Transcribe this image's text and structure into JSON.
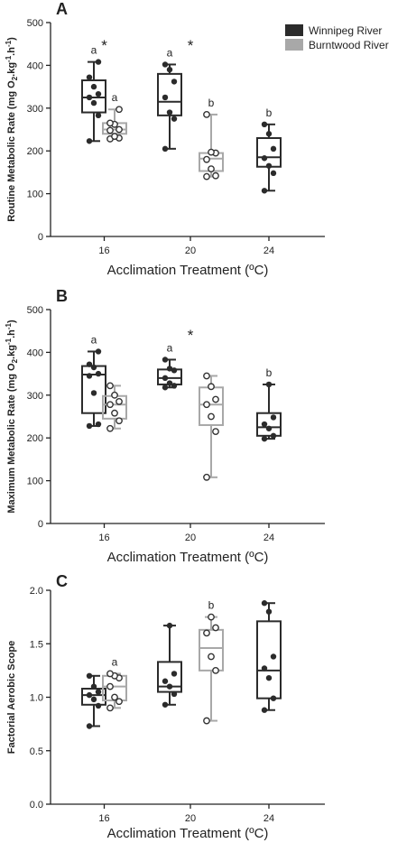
{
  "legend": {
    "placement": "top-right",
    "items": [
      {
        "name": "Winnipeg River",
        "color": "#2b2b2b"
      },
      {
        "name": "Burntwood River",
        "color": "#a8a8a8"
      }
    ]
  },
  "chart_data": [
    {
      "panel": "A",
      "type": "box",
      "title": "",
      "xlabel": "Acclimation Treatment (ºC)",
      "ylabel": "Routine Metabolic Rate (mg O2.kg-1.h-1)",
      "ylabel_parts": [
        "Routine Metabolic Rate (mg O",
        "2",
        ".kg",
        "-1",
        ".h",
        "-1",
        ")"
      ],
      "categories": [
        "16",
        "20",
        "24"
      ],
      "yticks": [
        "0",
        "100",
        "200",
        "300",
        "400",
        "500"
      ],
      "ylim": [
        0,
        500
      ],
      "series": [
        {
          "name": "Winnipeg River",
          "boxes": [
            {
              "category": "16",
              "min": 223,
              "q1": 290,
              "median": 325,
              "q3": 365,
              "max": 408,
              "points": [
                223,
                283,
                312,
                325,
                333,
                350,
                372,
                408
              ],
              "label": "a"
            },
            {
              "category": "20",
              "min": 205,
              "q1": 283,
              "median": 315,
              "q3": 380,
              "max": 402,
              "points": [
                205,
                275,
                290,
                325,
                362,
                390,
                402
              ],
              "label": "a"
            },
            {
              "category": "24",
              "min": 107,
              "q1": 163,
              "median": 185,
              "q3": 230,
              "max": 262,
              "points": [
                107,
                148,
                165,
                183,
                205,
                240,
                262
              ],
              "label": "b"
            }
          ]
        },
        {
          "name": "Burntwood River",
          "boxes": [
            {
              "category": "16",
              "min": 228,
              "q1": 240,
              "median": 250,
              "q3": 265,
              "max": 297,
              "points": [
                228,
                230,
                234,
                248,
                250,
                262,
                265,
                297
              ],
              "label": "a"
            },
            {
              "category": "20",
              "min": 140,
              "q1": 153,
              "median": 182,
              "q3": 195,
              "max": 285,
              "points": [
                140,
                142,
                158,
                180,
                195,
                197,
                285
              ],
              "label": "b"
            }
          ]
        }
      ],
      "significance": [
        "16",
        "20"
      ]
    },
    {
      "panel": "B",
      "type": "box",
      "title": "",
      "xlabel": "Acclimation Treatment (ºC)",
      "ylabel": "Maximum Metabolic Rate (mg O2.kg-1.h-1)",
      "ylabel_parts": [
        "Maximum Metabolic Rate (mg O",
        "2",
        ".kg",
        "-1",
        ".h",
        "-1",
        ")"
      ],
      "categories": [
        "16",
        "20",
        "24"
      ],
      "yticks": [
        "0",
        "100",
        "200",
        "300",
        "400",
        "500"
      ],
      "ylim": [
        0,
        500
      ],
      "series": [
        {
          "name": "Winnipeg River",
          "boxes": [
            {
              "category": "16",
              "min": 228,
              "q1": 258,
              "median": 348,
              "q3": 368,
              "max": 402,
              "points": [
                228,
                232,
                305,
                345,
                350,
                365,
                372,
                402
              ],
              "label": "a"
            },
            {
              "category": "20",
              "min": 318,
              "q1": 325,
              "median": 340,
              "q3": 360,
              "max": 383,
              "points": [
                318,
                322,
                328,
                340,
                358,
                362,
                383
              ],
              "label": "a"
            },
            {
              "category": "24",
              "min": 198,
              "q1": 205,
              "median": 225,
              "q3": 258,
              "max": 325,
              "points": [
                198,
                205,
                222,
                232,
                248,
                325
              ],
              "label": "b"
            }
          ]
        },
        {
          "name": "Burntwood River",
          "boxes": [
            {
              "category": "16",
              "min": 222,
              "q1": 245,
              "median": 278,
              "q3": 298,
              "max": 322,
              "points": [
                222,
                240,
                258,
                278,
                285,
                300,
                322
              ],
              "label": ""
            },
            {
              "category": "20",
              "min": 108,
              "q1": 230,
              "median": 278,
              "q3": 318,
              "max": 345,
              "points": [
                108,
                215,
                250,
                278,
                290,
                320,
                345
              ],
              "label": ""
            }
          ]
        }
      ],
      "significance": [
        "20"
      ]
    },
    {
      "panel": "C",
      "type": "box",
      "title": "",
      "xlabel": "Acclimation Treatment (ºC)",
      "ylabel": "Factorial Aerobic Scope",
      "ylabel_parts": [
        "Factorial Aerobic Scope"
      ],
      "categories": [
        "16",
        "20",
        "24"
      ],
      "yticks": [
        "0.0",
        "0.5",
        "1.0",
        "1.5",
        "2.0"
      ],
      "ylim": [
        0,
        2.0
      ],
      "series": [
        {
          "name": "Winnipeg River",
          "boxes": [
            {
              "category": "16",
              "min": 0.73,
              "q1": 0.93,
              "median": 1.02,
              "q3": 1.08,
              "max": 1.2,
              "points": [
                0.73,
                0.92,
                0.98,
                1.02,
                1.05,
                1.1,
                1.2
              ],
              "label": ""
            },
            {
              "category": "20",
              "min": 0.93,
              "q1": 1.05,
              "median": 1.1,
              "q3": 1.33,
              "max": 1.67,
              "points": [
                0.93,
                1.03,
                1.1,
                1.15,
                1.22,
                1.67
              ],
              "label": ""
            },
            {
              "category": "24",
              "min": 0.88,
              "q1": 0.99,
              "median": 1.25,
              "q3": 1.71,
              "max": 1.88,
              "points": [
                0.88,
                0.99,
                1.18,
                1.27,
                1.38,
                1.8,
                1.88
              ],
              "label": ""
            }
          ]
        },
        {
          "name": "Burntwood River",
          "boxes": [
            {
              "category": "16",
              "min": 0.9,
              "q1": 0.97,
              "median": 1.1,
              "q3": 1.2,
              "max": 1.22,
              "points": [
                0.9,
                0.96,
                1.0,
                1.1,
                1.18,
                1.2,
                1.22
              ],
              "label": "a"
            },
            {
              "category": "20",
              "min": 0.78,
              "q1": 1.25,
              "median": 1.46,
              "q3": 1.63,
              "max": 1.75,
              "points": [
                0.78,
                1.25,
                1.38,
                1.6,
                1.65,
                1.75
              ],
              "label": "b"
            }
          ]
        }
      ],
      "significance": []
    }
  ]
}
